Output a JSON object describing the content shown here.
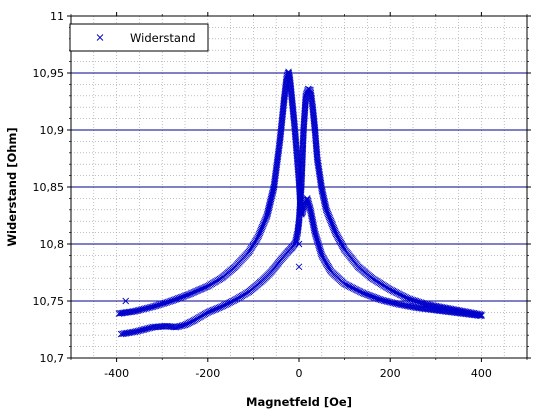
{
  "chart_data": {
    "type": "scatter",
    "xlabel": "Magnetfeld [Oe]",
    "ylabel": "Widerstand [Ohm]",
    "xlim": [
      -500,
      500
    ],
    "ylim": [
      10.7,
      11.0
    ],
    "x_ticks": [
      -400,
      -200,
      0,
      200,
      400
    ],
    "x_tick_labels": [
      "-400",
      "-200",
      "0",
      "200",
      "400"
    ],
    "y_ticks": [
      10.7,
      10.75,
      10.8,
      10.85,
      10.9,
      10.95,
      11.0
    ],
    "y_tick_labels": [
      "10,7",
      "10,75",
      "10,8",
      "10,85",
      "10,9",
      "10,95",
      "11"
    ],
    "major_grid_y": [
      10.75,
      10.8,
      10.85,
      10.9,
      10.95
    ],
    "minor_grid": true,
    "legend": {
      "position": "top-left",
      "entries": [
        {
          "label": "Widerstand",
          "marker": "x",
          "color": "#0000cc"
        }
      ]
    },
    "marker_color": "#0000cc",
    "grid_major_color": "#00008b",
    "series": [
      {
        "name": "Widerstand",
        "branches": [
          {
            "x": [
              -395,
              -360,
              -320,
              -280,
              -240,
              -200,
              -170,
              -140,
              -110,
              -90,
              -70,
              -55,
              -42,
              -33,
              -27,
              -23,
              -20,
              -15,
              -10,
              -5,
              0,
              3,
              5,
              8,
              12,
              18,
              25,
              35,
              50,
              70,
              100,
              140,
              180,
              220,
              260,
              300,
              340,
              380,
              400
            ],
            "y": [
              10.739,
              10.741,
              10.745,
              10.75,
              10.756,
              10.763,
              10.77,
              10.78,
              10.793,
              10.806,
              10.825,
              10.85,
              10.89,
              10.925,
              10.946,
              10.951,
              10.945,
              10.925,
              10.905,
              10.88,
              10.855,
              10.835,
              10.826,
              10.828,
              10.836,
              10.84,
              10.83,
              10.81,
              10.79,
              10.776,
              10.765,
              10.757,
              10.751,
              10.747,
              10.744,
              10.742,
              10.74,
              10.738,
              10.737
            ]
          },
          {
            "x": [
              -390,
              -360,
              -320,
              -290,
              -270,
              -250,
              -230,
              -200,
              -170,
              -140,
              -110,
              -80,
              -60,
              -40,
              -25,
              -15,
              -8,
              -3,
              0,
              5,
              10,
              15,
              20,
              25,
              30,
              35,
              40,
              50,
              60,
              80,
              100,
              130,
              160,
              200,
              240,
              280,
              320,
              360,
              400
            ],
            "y": [
              10.721,
              10.723,
              10.727,
              10.728,
              10.727,
              10.729,
              10.733,
              10.74,
              10.745,
              10.751,
              10.758,
              10.768,
              10.776,
              10.786,
              10.793,
              10.797,
              10.801,
              10.81,
              10.82,
              10.85,
              10.9,
              10.93,
              10.936,
              10.935,
              10.92,
              10.9,
              10.875,
              10.848,
              10.83,
              10.81,
              10.795,
              10.78,
              10.77,
              10.76,
              10.752,
              10.747,
              10.744,
              10.741,
              10.738
            ]
          }
        ],
        "outliers": {
          "x": [
            -380,
            0,
            0
          ],
          "y": [
            10.75,
            10.8,
            10.78
          ]
        }
      }
    ]
  }
}
